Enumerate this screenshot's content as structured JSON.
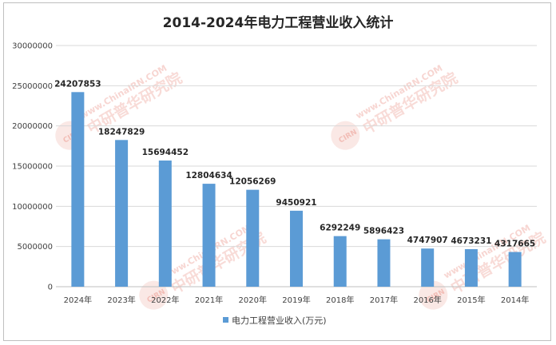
{
  "chart_data": {
    "type": "bar",
    "title": "2014-2024年电力工程营业收入统计",
    "categories": [
      "2024年",
      "2023年",
      "2022年",
      "2021年",
      "2020年",
      "2019年",
      "2018年",
      "2017年",
      "2016年",
      "2015年",
      "2014年"
    ],
    "series": [
      {
        "name": "电力工程营业收入(万元)",
        "color": "#5b9bd5",
        "values": [
          24207853,
          18247829,
          15694452,
          12804634,
          12056269,
          9450921,
          6292249,
          5896423,
          4747907,
          4673231,
          4317665
        ]
      }
    ],
    "yticks": [
      "0",
      "5000000",
      "10000000",
      "15000000",
      "20000000",
      "25000000",
      "30000000"
    ],
    "ylim": [
      0,
      30000000
    ],
    "grid": true,
    "legend_position": "bottom",
    "watermark": {
      "latin": "www.ChinaIRN.COM",
      "cn": "中研普华研究院",
      "logo": "CIRN"
    }
  }
}
